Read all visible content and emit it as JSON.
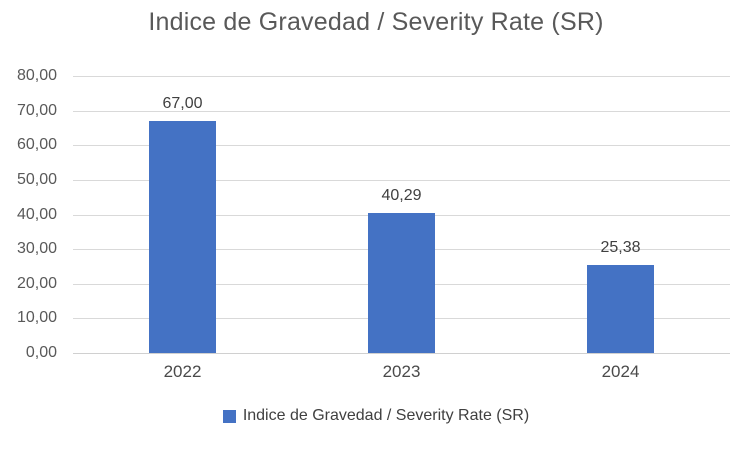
{
  "chart_data": {
    "type": "bar",
    "title": "Indice de Gravedad / Severity Rate (SR)",
    "categories": [
      "2022",
      "2023",
      "2024"
    ],
    "values": [
      67.0,
      40.29,
      25.38
    ],
    "value_labels": [
      "67,00",
      "40,29",
      "25,38"
    ],
    "ylim": [
      0,
      80
    ],
    "ytick_step": 10,
    "ytick_labels": [
      "0,00",
      "10,00",
      "20,00",
      "30,00",
      "40,00",
      "50,00",
      "60,00",
      "70,00",
      "80,00"
    ],
    "grid": true,
    "xlabel": "",
    "ylabel": "",
    "legend": {
      "position": "bottom",
      "entries": [
        {
          "label": "Indice de Gravedad / Severity Rate (SR)",
          "color": "#4472C4"
        }
      ]
    },
    "colors": {
      "bar": "#4472C4",
      "gridline": "#D9D9D9",
      "axis_line": "#D0D0D0",
      "title_text": "#595959",
      "axis_text": "#595959",
      "data_label_text": "#404040"
    }
  }
}
